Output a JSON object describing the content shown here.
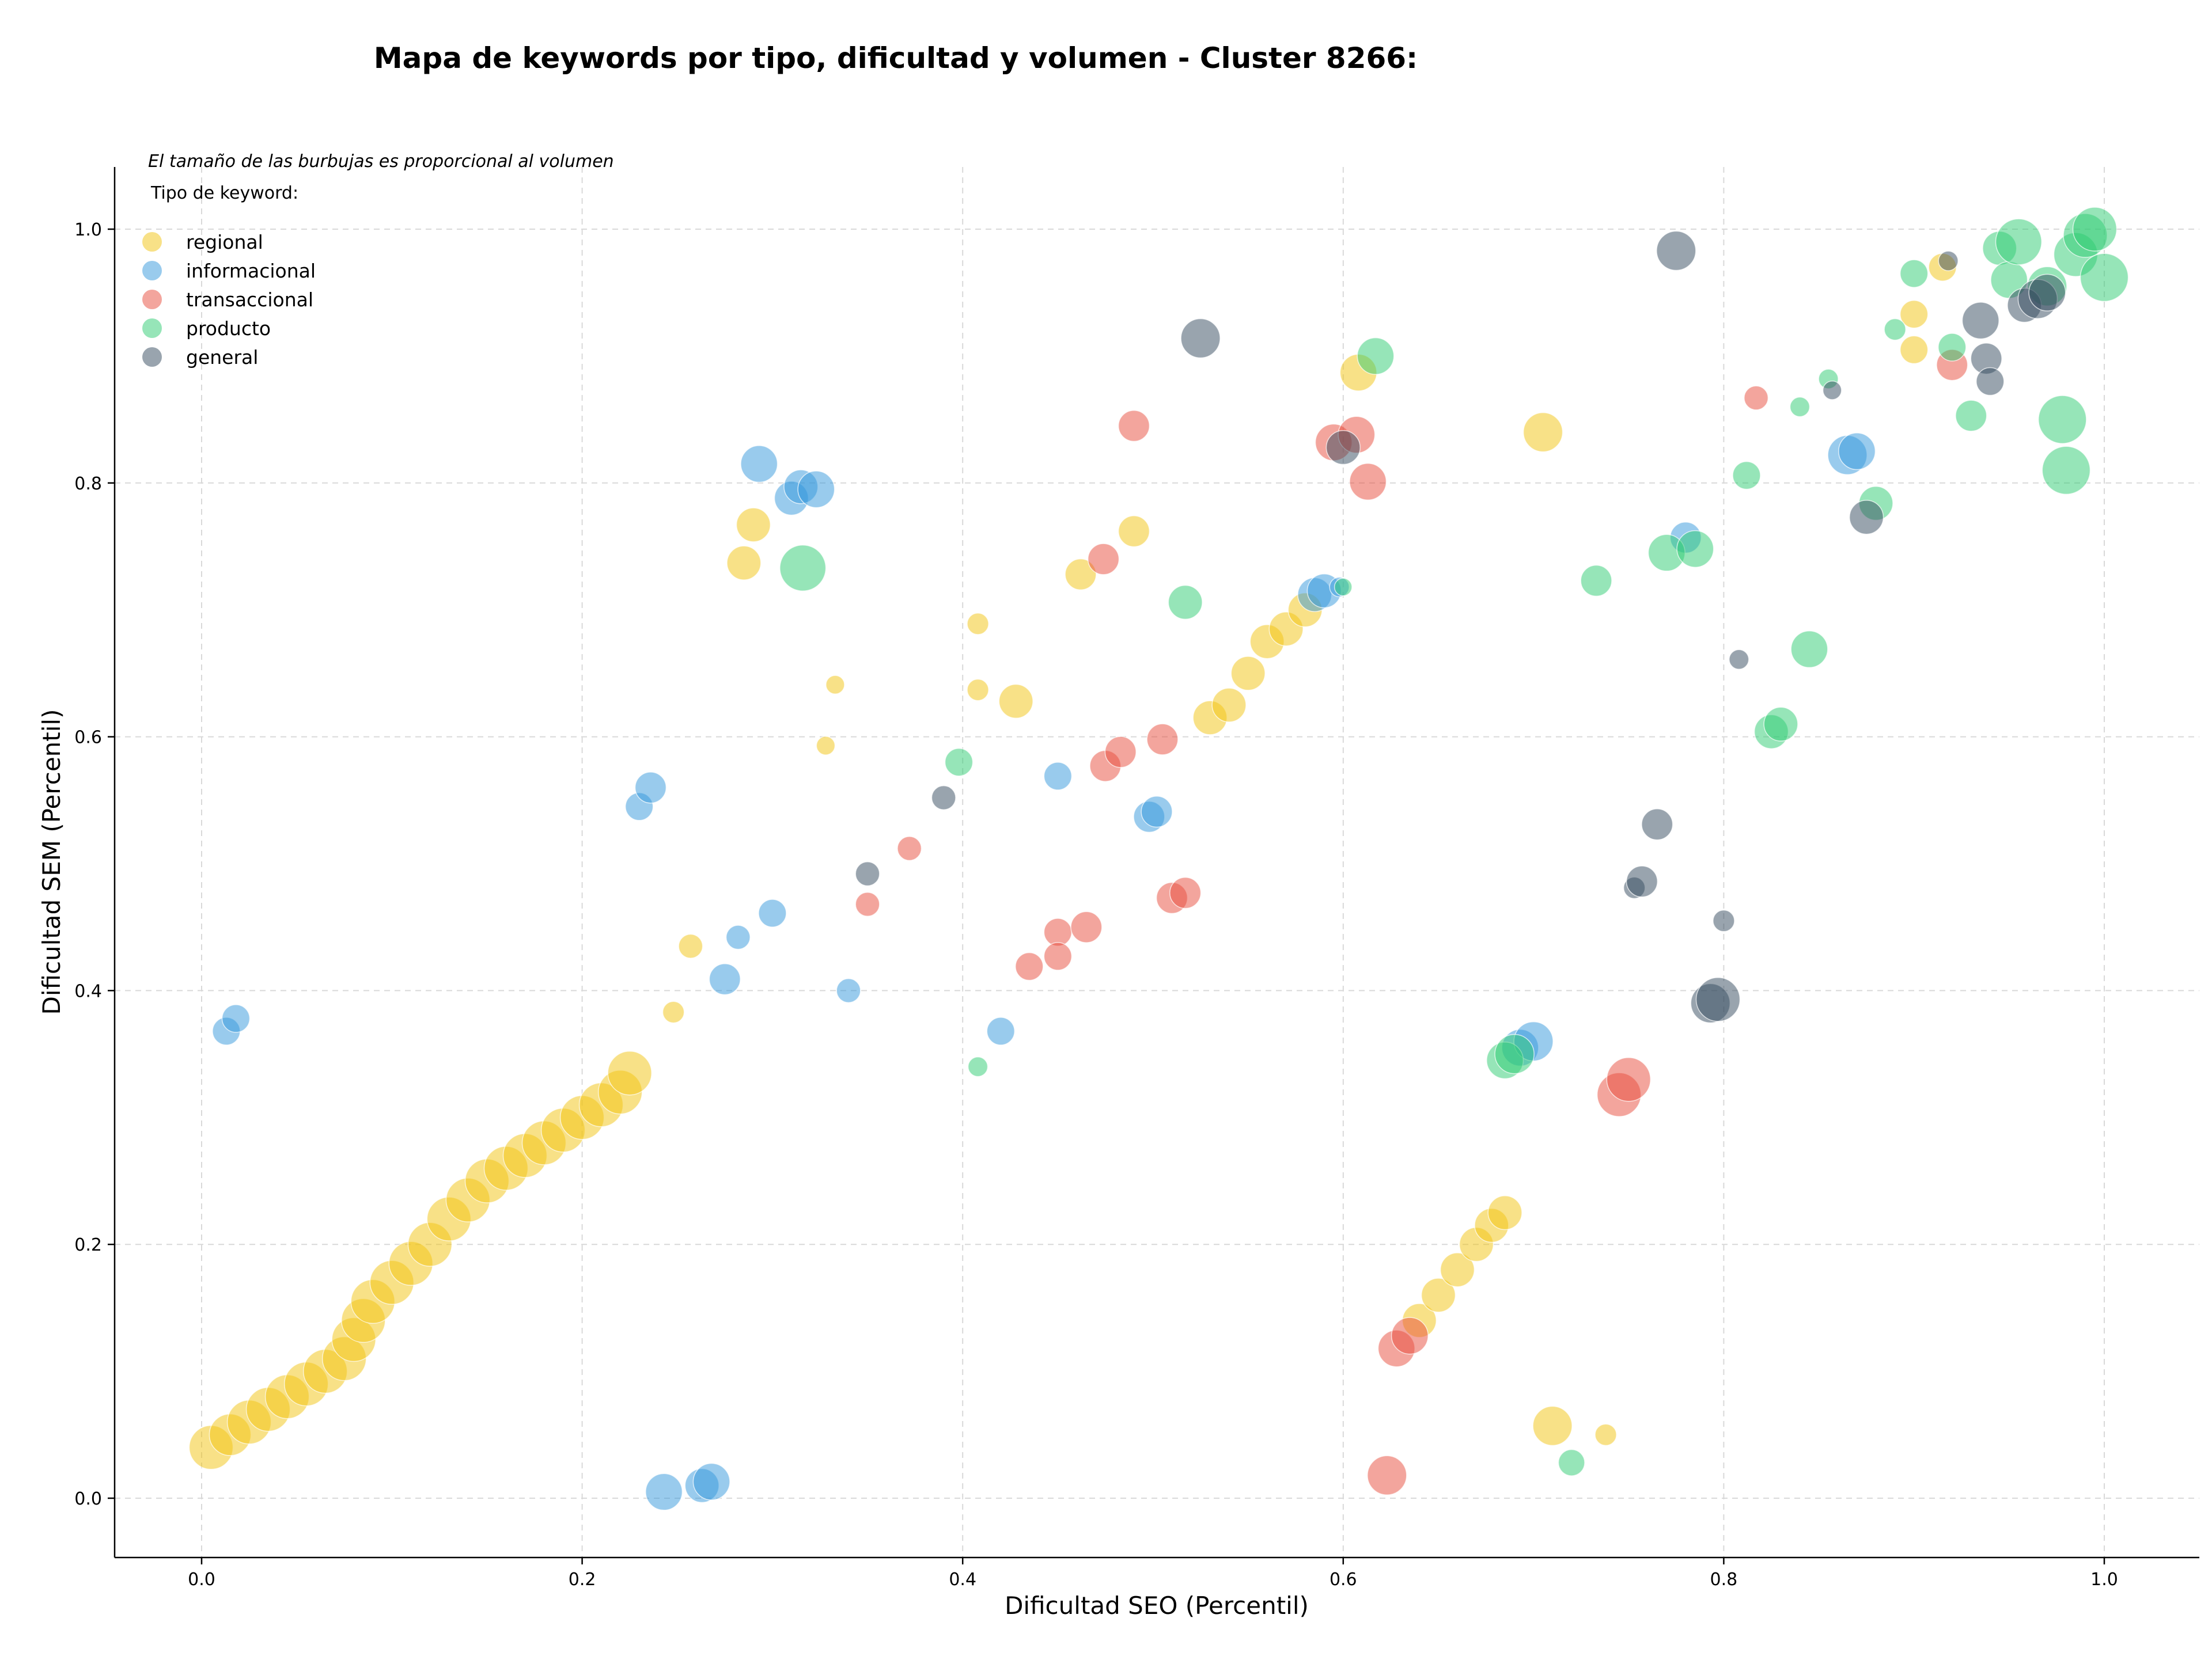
{
  "chart_data": {
    "type": "scatter",
    "title": "Mapa de keywords por tipo, dificultad y volumen - Cluster 8266:",
    "xlabel": "Dificultad SEO (Percentil)",
    "ylabel": "Dificultad SEM (Percentil)",
    "xlim": [
      -0.045,
      1.05
    ],
    "ylim": [
      -0.045,
      1.05
    ],
    "xticks": [
      "0.0",
      "0.2",
      "0.4",
      "0.6",
      "0.8",
      "1.0"
    ],
    "yticks": [
      "0.0",
      "0.2",
      "0.4",
      "0.6",
      "0.8",
      "1.0"
    ],
    "grid": true,
    "annotation": "El tamaño de las burbujas es proporcional al volumen",
    "legend": {
      "title": "Tipo de keyword:",
      "placement": "top-left",
      "entries": [
        "regional",
        "informacional",
        "transaccional",
        "producto",
        "general"
      ]
    },
    "colors": {
      "regional": "#f1c40f",
      "informacional": "#3498db",
      "transaccional": "#e74c3c",
      "producto": "#2ecc71",
      "general": "#34495e"
    },
    "series": [
      {
        "name": "regional",
        "points": [
          [
            0.005,
            0.04,
            5
          ],
          [
            0.015,
            0.05,
            4.5
          ],
          [
            0.025,
            0.06,
            5
          ],
          [
            0.035,
            0.07,
            5
          ],
          [
            0.045,
            0.08,
            5
          ],
          [
            0.055,
            0.09,
            5
          ],
          [
            0.065,
            0.1,
            5
          ],
          [
            0.075,
            0.11,
            5
          ],
          [
            0.08,
            0.125,
            5
          ],
          [
            0.085,
            0.14,
            5
          ],
          [
            0.09,
            0.155,
            5
          ],
          [
            0.1,
            0.17,
            5
          ],
          [
            0.11,
            0.185,
            5
          ],
          [
            0.12,
            0.2,
            5
          ],
          [
            0.13,
            0.22,
            5
          ],
          [
            0.14,
            0.235,
            5
          ],
          [
            0.15,
            0.25,
            5
          ],
          [
            0.16,
            0.26,
            5
          ],
          [
            0.17,
            0.27,
            5
          ],
          [
            0.18,
            0.28,
            5
          ],
          [
            0.19,
            0.29,
            5
          ],
          [
            0.2,
            0.3,
            5
          ],
          [
            0.21,
            0.31,
            5
          ],
          [
            0.22,
            0.32,
            5
          ],
          [
            0.225,
            0.335,
            5
          ],
          [
            0.248,
            0.383,
            1.2
          ],
          [
            0.257,
            0.435,
            1.5
          ],
          [
            0.285,
            0.737,
            3
          ],
          [
            0.29,
            0.767,
            3
          ],
          [
            0.328,
            0.593,
            0.9
          ],
          [
            0.333,
            0.641,
            0.9
          ],
          [
            0.408,
            0.689,
            1.2
          ],
          [
            0.408,
            0.637,
            1.2
          ],
          [
            0.428,
            0.628,
            3
          ],
          [
            0.462,
            0.728,
            2.5
          ],
          [
            0.49,
            0.762,
            2.5
          ],
          [
            0.53,
            0.615,
            3
          ],
          [
            0.54,
            0.625,
            3
          ],
          [
            0.55,
            0.65,
            3
          ],
          [
            0.56,
            0.675,
            3
          ],
          [
            0.57,
            0.685,
            3
          ],
          [
            0.58,
            0.7,
            3
          ],
          [
            0.608,
            0.887,
            3.5
          ],
          [
            0.64,
            0.14,
            3
          ],
          [
            0.65,
            0.16,
            3
          ],
          [
            0.66,
            0.18,
            3
          ],
          [
            0.67,
            0.2,
            3
          ],
          [
            0.678,
            0.215,
            3
          ],
          [
            0.685,
            0.225,
            3
          ],
          [
            0.705,
            0.84,
            4
          ],
          [
            0.71,
            0.057,
            4
          ],
          [
            0.738,
            0.05,
            1.2
          ],
          [
            0.9,
            0.905,
            2
          ],
          [
            0.9,
            0.933,
            2
          ],
          [
            0.915,
            0.97,
            2
          ]
        ]
      },
      {
        "name": "informacional",
        "points": [
          [
            0.013,
            0.368,
            2
          ],
          [
            0.018,
            0.378,
            2
          ],
          [
            0.23,
            0.545,
            2
          ],
          [
            0.236,
            0.56,
            2.5
          ],
          [
            0.243,
            0.005,
            3.5
          ],
          [
            0.263,
            0.01,
            3
          ],
          [
            0.268,
            0.013,
            3.5
          ],
          [
            0.275,
            0.409,
            2.5
          ],
          [
            0.282,
            0.442,
            1.5
          ],
          [
            0.293,
            0.815,
            3.5
          ],
          [
            0.3,
            0.461,
            2
          ],
          [
            0.31,
            0.788,
            3
          ],
          [
            0.315,
            0.797,
            3
          ],
          [
            0.323,
            0.795,
            3.5
          ],
          [
            0.34,
            0.4,
            1.5
          ],
          [
            0.42,
            0.368,
            2
          ],
          [
            0.45,
            0.569,
            2
          ],
          [
            0.498,
            0.537,
            2.5
          ],
          [
            0.502,
            0.541,
            2.5
          ],
          [
            0.585,
            0.712,
            3
          ],
          [
            0.59,
            0.715,
            3
          ],
          [
            0.598,
            0.718,
            1
          ],
          [
            0.693,
            0.355,
            3.5
          ],
          [
            0.7,
            0.36,
            4
          ],
          [
            0.78,
            0.757,
            2.5
          ],
          [
            0.865,
            0.822,
            4
          ],
          [
            0.87,
            0.825,
            3.5
          ]
        ]
      },
      {
        "name": "transaccional",
        "points": [
          [
            0.35,
            0.468,
            1.5
          ],
          [
            0.372,
            0.512,
            1.5
          ],
          [
            0.435,
            0.419,
            2
          ],
          [
            0.45,
            0.446,
            2
          ],
          [
            0.45,
            0.427,
            2
          ],
          [
            0.465,
            0.45,
            2.5
          ],
          [
            0.474,
            0.74,
            2.5
          ],
          [
            0.475,
            0.577,
            2.5
          ],
          [
            0.483,
            0.588,
            2.5
          ],
          [
            0.49,
            0.845,
            2.5
          ],
          [
            0.505,
            0.598,
            2.5
          ],
          [
            0.51,
            0.473,
            2.5
          ],
          [
            0.517,
            0.477,
            2.5
          ],
          [
            0.595,
            0.832,
            3.5
          ],
          [
            0.607,
            0.838,
            3.5
          ],
          [
            0.613,
            0.801,
            3.5
          ],
          [
            0.623,
            0.018,
            4
          ],
          [
            0.628,
            0.118,
            3.5
          ],
          [
            0.635,
            0.128,
            3.5
          ],
          [
            0.745,
            0.318,
            5
          ],
          [
            0.75,
            0.33,
            5
          ],
          [
            0.817,
            0.867,
            1.5
          ],
          [
            0.92,
            0.893,
            2.5
          ]
        ]
      },
      {
        "name": "producto",
        "points": [
          [
            0.316,
            0.733,
            5.5
          ],
          [
            0.398,
            0.58,
            2
          ],
          [
            0.408,
            0.34,
            1
          ],
          [
            0.517,
            0.706,
            3
          ],
          [
            0.6,
            0.718,
            0.8
          ],
          [
            0.617,
            0.9,
            3.5
          ],
          [
            0.685,
            0.345,
            3.5
          ],
          [
            0.69,
            0.35,
            4
          ],
          [
            0.72,
            0.028,
            1.8
          ],
          [
            0.733,
            0.723,
            2.5
          ],
          [
            0.77,
            0.745,
            3.5
          ],
          [
            0.785,
            0.748,
            3.5
          ],
          [
            0.812,
            0.806,
            2
          ],
          [
            0.825,
            0.604,
            3
          ],
          [
            0.83,
            0.61,
            3
          ],
          [
            0.845,
            0.669,
            3.5
          ],
          [
            0.84,
            0.86,
            1
          ],
          [
            0.855,
            0.882,
            1
          ],
          [
            0.88,
            0.784,
            3
          ],
          [
            0.89,
            0.921,
            1.2
          ],
          [
            0.9,
            0.965,
            2
          ],
          [
            0.92,
            0.907,
            2
          ],
          [
            0.93,
            0.853,
            2.5
          ],
          [
            0.945,
            0.985,
            3
          ],
          [
            0.95,
            0.96,
            3.5
          ],
          [
            0.955,
            0.99,
            5.5
          ],
          [
            0.97,
            0.955,
            4
          ],
          [
            0.978,
            0.85,
            6
          ],
          [
            0.98,
            0.81,
            6
          ],
          [
            0.985,
            0.98,
            5
          ],
          [
            0.99,
            0.995,
            5
          ],
          [
            0.995,
            1.0,
            5
          ],
          [
            1.0,
            0.962,
            6
          ]
        ]
      },
      {
        "name": "general",
        "points": [
          [
            0.35,
            0.492,
            1.5
          ],
          [
            0.39,
            0.552,
            1.5
          ],
          [
            0.525,
            0.914,
            4
          ],
          [
            0.6,
            0.828,
            3
          ],
          [
            0.753,
            0.481,
            1.2
          ],
          [
            0.757,
            0.486,
            2.5
          ],
          [
            0.765,
            0.531,
            2.5
          ],
          [
            0.775,
            0.983,
            4
          ],
          [
            0.793,
            0.39,
            4
          ],
          [
            0.797,
            0.393,
            5
          ],
          [
            0.8,
            0.455,
            1.2
          ],
          [
            0.808,
            0.661,
            1
          ],
          [
            0.857,
            0.873,
            0.9
          ],
          [
            0.875,
            0.773,
            3
          ],
          [
            0.918,
            0.975,
            1
          ],
          [
            0.935,
            0.928,
            3.5
          ],
          [
            0.938,
            0.898,
            2.5
          ],
          [
            0.94,
            0.88,
            2
          ],
          [
            0.958,
            0.94,
            3
          ],
          [
            0.965,
            0.945,
            4
          ],
          [
            0.97,
            0.95,
            3.5
          ]
        ]
      }
    ]
  }
}
